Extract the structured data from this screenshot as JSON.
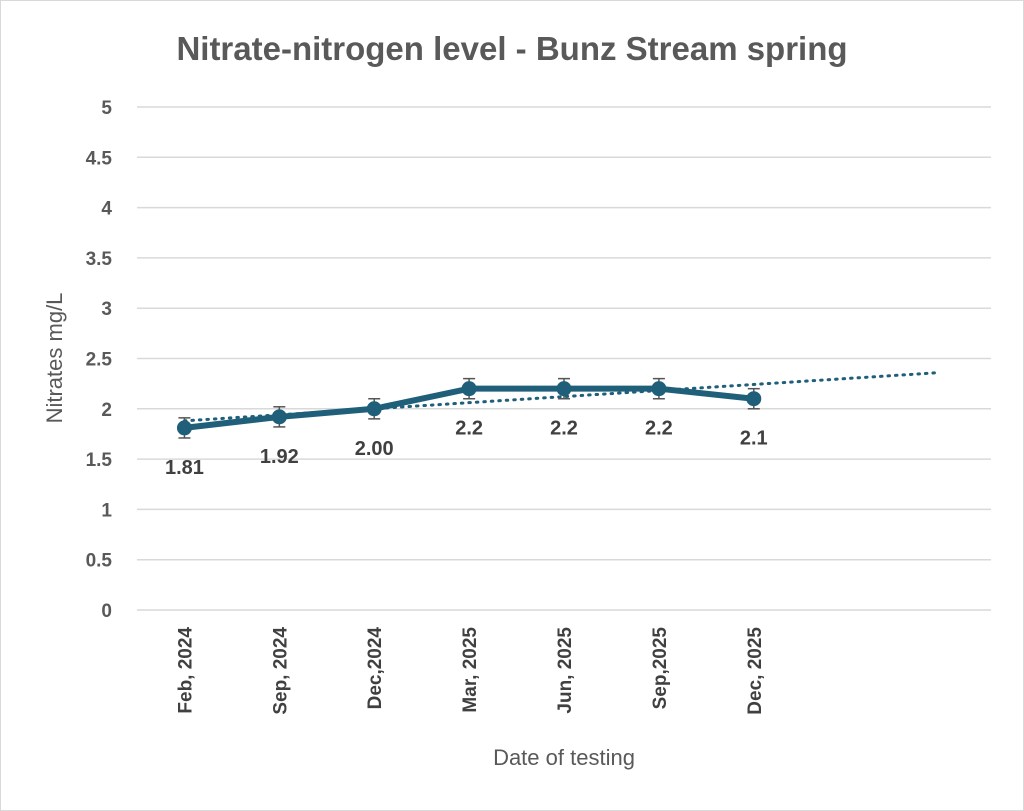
{
  "chart_data": {
    "type": "line",
    "title": "Nitrate-nitrogen level - Bunz Stream spring",
    "xlabel": "Date of testing",
    "ylabel": "Nitrates mg/L",
    "ylim": [
      0,
      5
    ],
    "yticks": [
      "0",
      "0.5",
      "1",
      "1.5",
      "2",
      "2.5",
      "3",
      "3.5",
      "4",
      "4.5",
      "5"
    ],
    "categories": [
      "Feb, 2024",
      "Sep, 2024",
      "Dec,2024",
      "Mar, 2025",
      "Jun, 2025",
      "Sep,2025",
      "Dec, 2025"
    ],
    "series": [
      {
        "values": [
          1.81,
          1.92,
          2.0,
          2.2,
          2.2,
          2.2,
          2.1
        ],
        "data_labels": [
          "1.81",
          "1.92",
          "2.00",
          "2.2",
          "2.2",
          "2.2",
          "2.1"
        ],
        "error": 0.1,
        "color": "#1f5f7a",
        "trendline": {
          "type": "linear",
          "style": "dotted",
          "start": 1.88,
          "end": 2.36
        }
      }
    ],
    "grid": true,
    "legend": "none"
  }
}
